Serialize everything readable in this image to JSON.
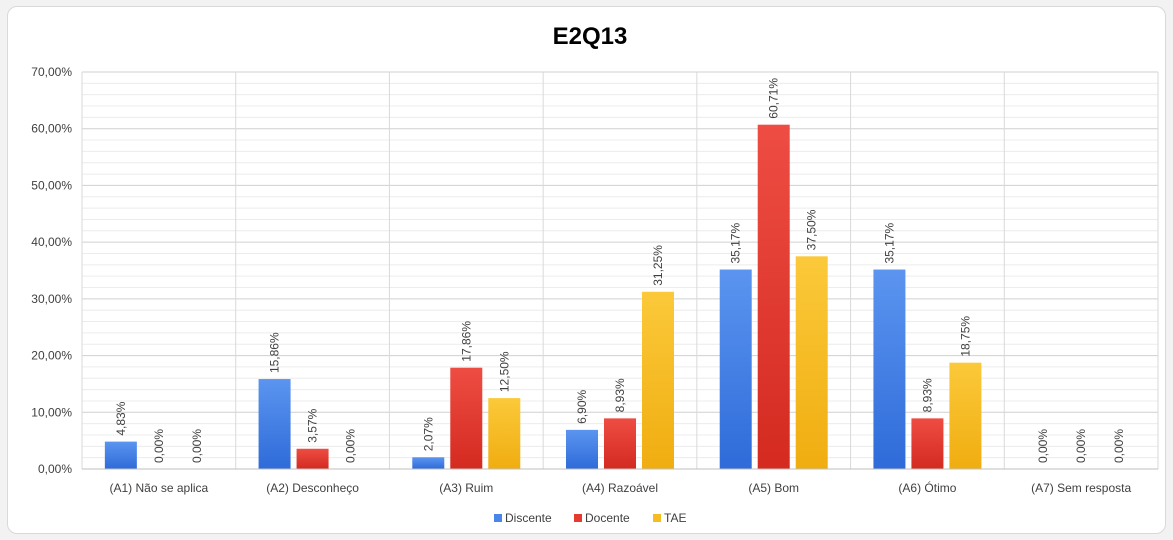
{
  "chart_data": {
    "type": "bar",
    "title": "E2Q13",
    "xlabel": "",
    "ylabel": "",
    "ylim": [
      0,
      70
    ],
    "y_ticks": [
      "0,00%",
      "10,00%",
      "20,00%",
      "30,00%",
      "40,00%",
      "50,00%",
      "60,00%",
      "70,00%"
    ],
    "y_tick_values": [
      0,
      10,
      20,
      30,
      40,
      50,
      60,
      70
    ],
    "grid": true,
    "legend_position": "bottom",
    "categories": [
      "(A1) Não se aplica",
      "(A2) Desconheço",
      "(A3) Ruim",
      "(A4) Razoável",
      "(A5) Bom",
      "(A6) Ótimo",
      "(A7) Sem resposta"
    ],
    "series": [
      {
        "name": "Discente",
        "color": "#4a86e8",
        "values": [
          4.83,
          15.86,
          2.07,
          6.9,
          35.17,
          35.17,
          0
        ],
        "labels": [
          "4,83%",
          "15,86%",
          "2,07%",
          "6,90%",
          "35,17%",
          "35,17%",
          "0,00%"
        ]
      },
      {
        "name": "Docente",
        "color": "#e53a2f",
        "values": [
          0,
          3.57,
          17.86,
          8.93,
          60.71,
          8.93,
          0
        ],
        "labels": [
          "0,00%",
          "3,57%",
          "17,86%",
          "8,93%",
          "60,71%",
          "8,93%",
          "0,00%"
        ]
      },
      {
        "name": "TAE",
        "color": "#f7bd20",
        "values": [
          0,
          0,
          12.5,
          31.25,
          37.5,
          18.75,
          0
        ],
        "labels": [
          "0,00%",
          "0,00%",
          "12,50%",
          "31,25%",
          "37,50%",
          "18,75%",
          "0,00%"
        ]
      }
    ]
  }
}
